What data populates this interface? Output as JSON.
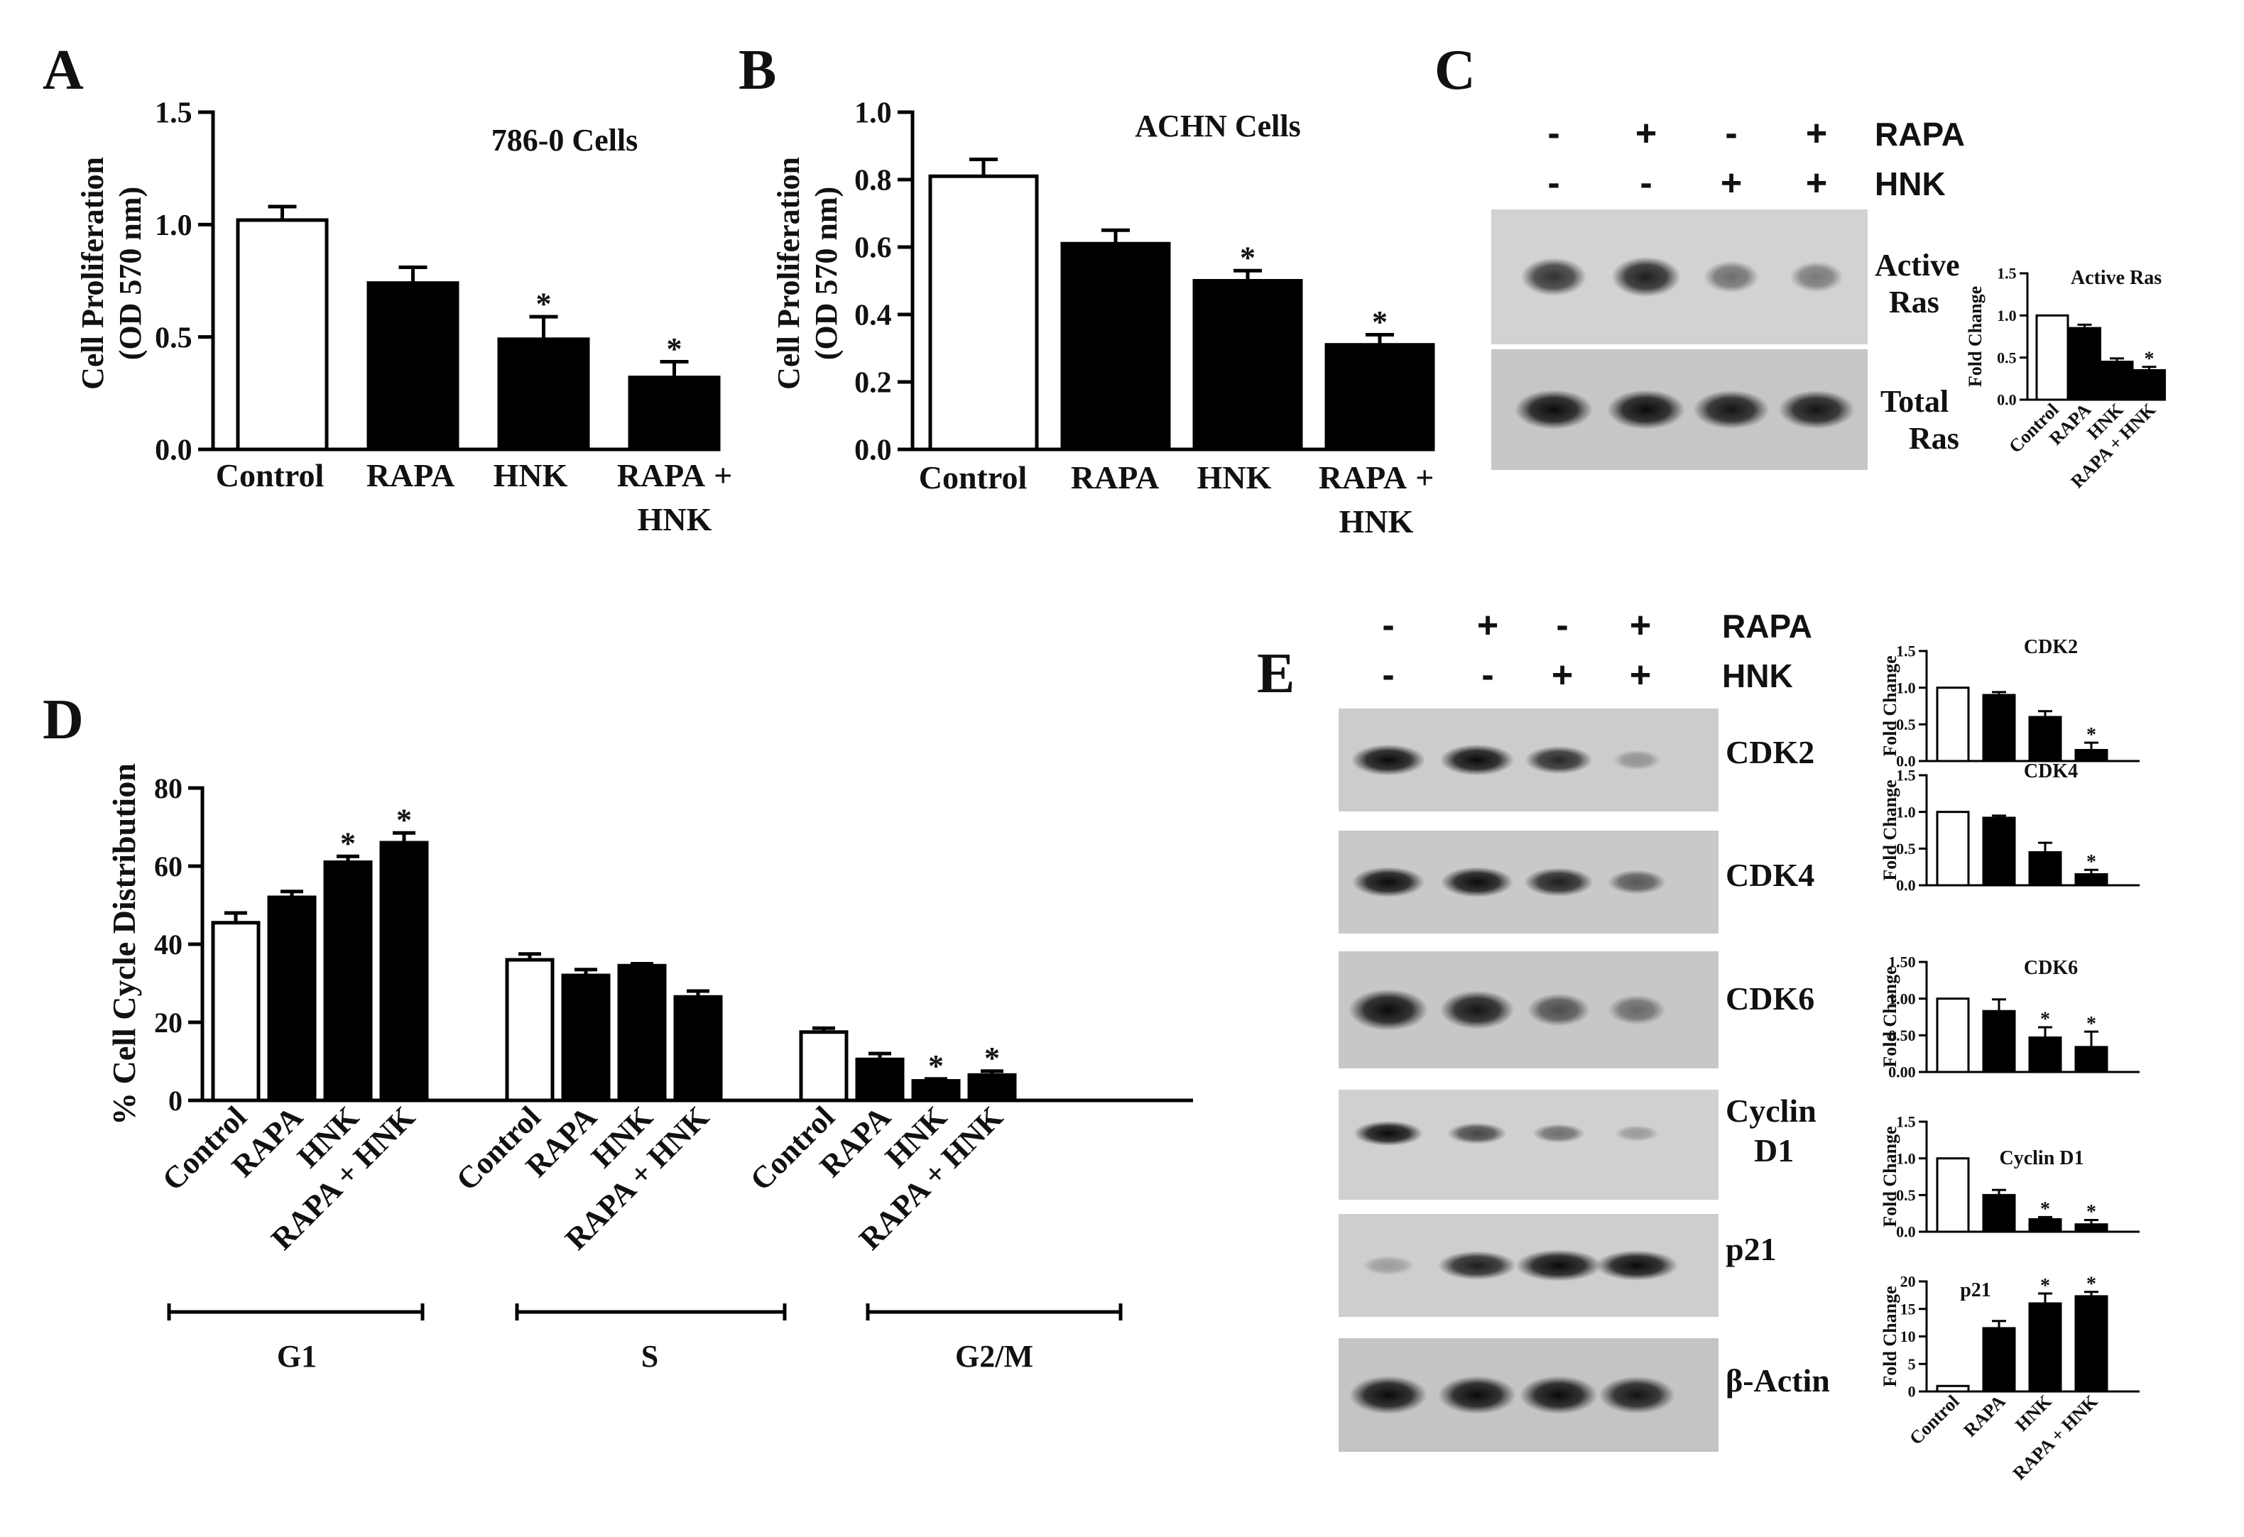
{
  "panel_letters": {
    "A": "A",
    "B": "B",
    "C": "C",
    "D": "D",
    "E": "E"
  },
  "axis_titles": {
    "proliferation_line1": "Cell Proliferation",
    "proliferation_line2": "(OD 570 nm)",
    "cell_cycle": "% Cell Cycle Distribution",
    "fold_change": "Fold Change"
  },
  "treatment_rows": {
    "C": {
      "rapa_label": "RAPA",
      "hnk_label": "HNK",
      "rapa_signs": [
        "-",
        "+",
        "-",
        "+"
      ],
      "hnk_signs": [
        "-",
        "-",
        "+",
        "+"
      ]
    },
    "E": {
      "rapa_label": "RAPA",
      "hnk_label": "HNK",
      "rapa_signs": [
        "-",
        "+",
        "-",
        "+"
      ],
      "hnk_signs": [
        "-",
        "-",
        "+",
        "+"
      ]
    }
  },
  "blot_labels": {
    "active_ras_line1": "Active",
    "active_ras_line2": "Ras",
    "total_ras_line1": "Total",
    "total_ras_line2": "Ras",
    "cdk2": "CDK2",
    "cdk4": "CDK4",
    "cdk6": "CDK6",
    "cyclin_line1": "Cyclin",
    "cyclin_line2": "D1",
    "p21": "p21",
    "actin": "β-Actin"
  },
  "blot_bands": {
    "active_ras": [
      0.65,
      0.75,
      0.35,
      0.3
    ],
    "total_ras": [
      0.85,
      0.85,
      0.8,
      0.8
    ],
    "cdk2": [
      0.9,
      0.9,
      0.7,
      0.15
    ],
    "cdk4": [
      0.85,
      0.85,
      0.75,
      0.45
    ],
    "cdk6": [
      0.95,
      0.8,
      0.5,
      0.35
    ],
    "cyclin_d1": [
      0.85,
      0.55,
      0.35,
      0.12
    ],
    "p21": [
      0.1,
      0.75,
      0.95,
      0.85
    ],
    "actin": [
      0.85,
      0.85,
      0.85,
      0.8
    ]
  },
  "d_group_labels": [
    "G1",
    "S",
    "G2/M"
  ],
  "chart_data": [
    {
      "id": "A",
      "type": "bar",
      "title": "786-0 Cells",
      "categories": [
        "Control",
        "RAPA",
        "HNK",
        "RAPA + HNK"
      ],
      "values": [
        1.02,
        0.74,
        0.49,
        0.32
      ],
      "errors": [
        0.06,
        0.07,
        0.1,
        0.07
      ],
      "significant": [
        false,
        false,
        true,
        true
      ],
      "ylabel": "Cell Proliferation (OD 570 nm)",
      "ylim": [
        0,
        1.5
      ],
      "yticks": [
        "0.0",
        "0.5",
        "1.0",
        "1.5"
      ],
      "fills": [
        "#ffffff",
        "#000000",
        "#000000",
        "#000000"
      ]
    },
    {
      "id": "B",
      "type": "bar",
      "title": "ACHN Cells",
      "categories": [
        "Control",
        "RAPA",
        "HNK",
        "RAPA + HNK"
      ],
      "values": [
        0.81,
        0.61,
        0.5,
        0.31
      ],
      "errors": [
        0.05,
        0.04,
        0.03,
        0.03
      ],
      "significant": [
        false,
        false,
        true,
        true
      ],
      "ylabel": "Cell Proliferation (OD 570 nm)",
      "ylim": [
        0,
        1.0
      ],
      "yticks": [
        "0.0",
        "0.2",
        "0.4",
        "0.6",
        "0.8",
        "1.0"
      ],
      "fills": [
        "#ffffff",
        "#000000",
        "#000000",
        "#000000"
      ]
    },
    {
      "id": "C",
      "type": "bar",
      "title": "Active Ras",
      "categories": [
        "Control",
        "RAPA",
        "HNK",
        "RAPA + HNK"
      ],
      "values": [
        1.0,
        0.85,
        0.45,
        0.35
      ],
      "errors": [
        0.0,
        0.04,
        0.04,
        0.04
      ],
      "significant": [
        false,
        false,
        false,
        true
      ],
      "ylabel": "Fold Change",
      "ylim": [
        0,
        1.5
      ],
      "yticks": [
        "0.0",
        "0.5",
        "1.0",
        "1.5"
      ],
      "fills": [
        "#ffffff",
        "#000000",
        "#000000",
        "#000000"
      ]
    },
    {
      "id": "D",
      "type": "bar",
      "title": "",
      "categories": [
        "Control",
        "RAPA",
        "HNK",
        "RAPA + HNK",
        "Control",
        "RAPA",
        "HNK",
        "RAPA + HNK",
        "Control",
        "RAPA",
        "HNK",
        "RAPA + HNK"
      ],
      "groups": [
        "G1",
        "G1",
        "G1",
        "G1",
        "S",
        "S",
        "S",
        "S",
        "G2/M",
        "G2/M",
        "G2/M",
        "G2/M"
      ],
      "values": [
        45.5,
        52,
        61,
        66,
        36,
        32,
        34.5,
        26.5,
        17.5,
        10.5,
        5,
        6.5
      ],
      "errors": [
        2.5,
        1.5,
        1.5,
        2.5,
        1.5,
        1.5,
        0.5,
        1.5,
        1,
        1.5,
        0.5,
        1
      ],
      "significant": [
        false,
        false,
        true,
        true,
        false,
        false,
        false,
        false,
        false,
        false,
        true,
        true
      ],
      "ylabel": "% Cell Cycle Distribution",
      "ylim": [
        0,
        80
      ],
      "yticks": [
        "0",
        "20",
        "40",
        "60",
        "80"
      ],
      "fills": [
        "#ffffff",
        "#000000",
        "#000000",
        "#000000",
        "#ffffff",
        "#000000",
        "#000000",
        "#000000",
        "#ffffff",
        "#000000",
        "#000000",
        "#000000"
      ]
    },
    {
      "id": "E-CDK2",
      "type": "bar",
      "title": "CDK2",
      "categories": [
        "Control",
        "RAPA",
        "HNK",
        "RAPA + HNK"
      ],
      "values": [
        1.0,
        0.9,
        0.6,
        0.15
      ],
      "errors": [
        0.0,
        0.04,
        0.08,
        0.1
      ],
      "significant": [
        false,
        false,
        false,
        true
      ],
      "ylabel": "Fold Change",
      "ylim": [
        0,
        1.5
      ],
      "yticks": [
        "0.0",
        "0.5",
        "1.0",
        "1.5"
      ],
      "fills": [
        "#ffffff",
        "#000000",
        "#000000",
        "#000000"
      ]
    },
    {
      "id": "E-CDK4",
      "type": "bar",
      "title": "CDK4",
      "categories": [
        "Control",
        "RAPA",
        "HNK",
        "RAPA + HNK"
      ],
      "values": [
        1.0,
        0.92,
        0.45,
        0.15
      ],
      "errors": [
        0.0,
        0.03,
        0.13,
        0.06
      ],
      "significant": [
        false,
        false,
        false,
        true
      ],
      "ylabel": "Fold Change",
      "ylim": [
        0,
        1.5
      ],
      "yticks": [
        "0.0",
        "0.5",
        "1.0",
        "1.5"
      ],
      "fills": [
        "#ffffff",
        "#000000",
        "#000000",
        "#000000"
      ]
    },
    {
      "id": "E-CDK6",
      "type": "bar",
      "title": "CDK6",
      "categories": [
        "Control",
        "RAPA",
        "HNK",
        "RAPA + HNK"
      ],
      "values": [
        1.0,
        0.83,
        0.47,
        0.34
      ],
      "errors": [
        0.0,
        0.16,
        0.14,
        0.21
      ],
      "significant": [
        false,
        false,
        true,
        true
      ],
      "ylabel": "Fold Change",
      "ylim": [
        0,
        1.5
      ],
      "yticks": [
        "0.00",
        "0.50",
        "1.00",
        "1.50"
      ],
      "fills": [
        "#ffffff",
        "#000000",
        "#000000",
        "#000000"
      ]
    },
    {
      "id": "E-CyclinD1",
      "type": "bar",
      "title": "Cyclin D1",
      "categories": [
        "Control",
        "RAPA",
        "HNK",
        "RAPA + HNK"
      ],
      "values": [
        1.0,
        0.5,
        0.17,
        0.1
      ],
      "errors": [
        0.0,
        0.07,
        0.03,
        0.06
      ],
      "significant": [
        false,
        false,
        true,
        true
      ],
      "ylabel": "Fold Change",
      "ylim": [
        0,
        1.5
      ],
      "yticks": [
        "0.0",
        "0.5",
        "1.0",
        "1.5"
      ],
      "fills": [
        "#ffffff",
        "#000000",
        "#000000",
        "#000000"
      ]
    },
    {
      "id": "E-p21",
      "type": "bar",
      "title": "p21",
      "categories": [
        "Control",
        "RAPA",
        "HNK",
        "RAPA + HNK"
      ],
      "values": [
        1,
        11.5,
        16,
        17.3
      ],
      "errors": [
        0,
        1.3,
        1.8,
        0.8
      ],
      "significant": [
        false,
        false,
        true,
        true
      ],
      "ylabel": "Fold Change",
      "ylim": [
        0,
        20
      ],
      "yticks": [
        "0",
        "5",
        "10",
        "15",
        "20"
      ],
      "fills": [
        "#ffffff",
        "#000000",
        "#000000",
        "#000000"
      ]
    }
  ]
}
